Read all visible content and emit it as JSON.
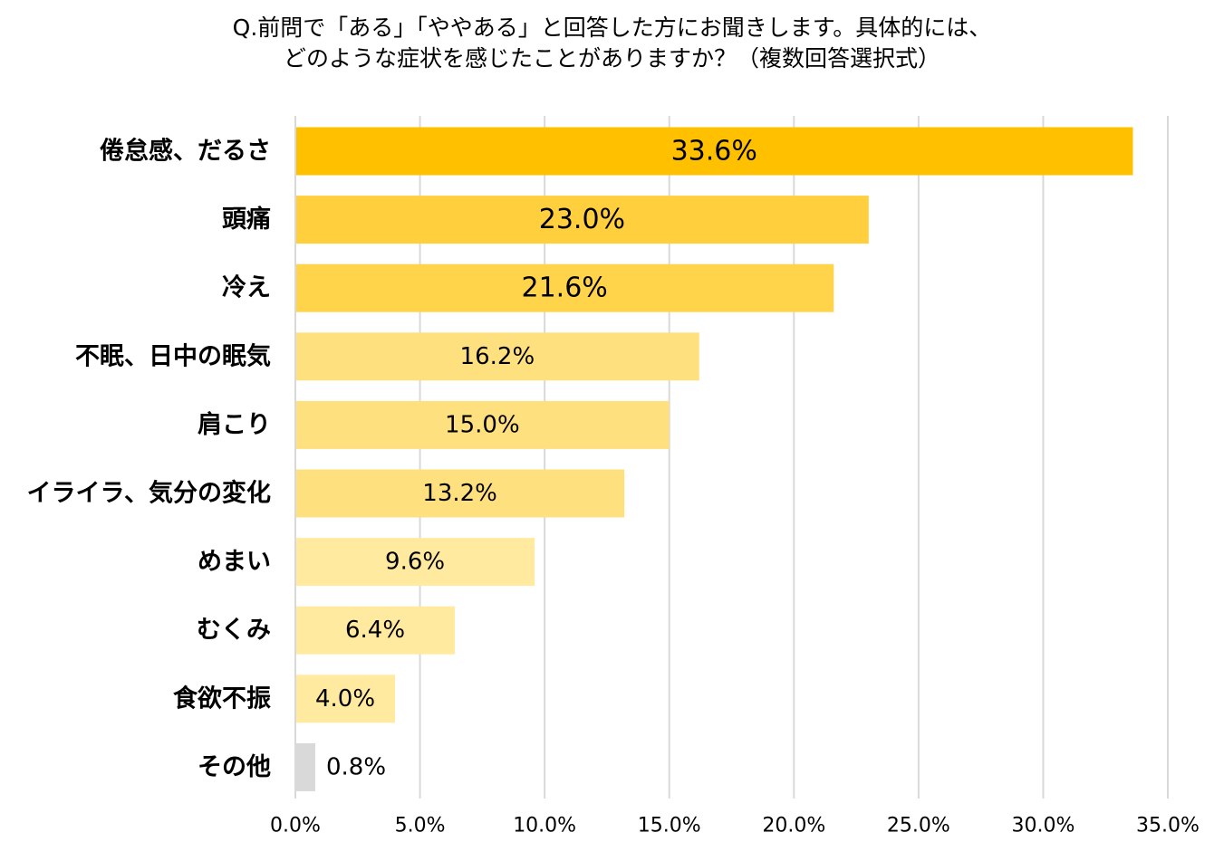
{
  "title": {
    "line1": "Q.前問で「ある」「ややある」と回答した方にお聞きします。具体的には、",
    "line2": "どのような症状を感じたことがありますか？（複数回答選択式）"
  },
  "chart_data": {
    "type": "bar",
    "orientation": "horizontal",
    "title": "Q.前問で「ある」「ややある」と回答した方にお聞きします。具体的には、どのような症状を感じたことがありますか？（複数回答選択式）",
    "categories": [
      "倦怠感、だるさ",
      "頭痛",
      "冷え",
      "不眠、日中の眠気",
      "肩こり",
      "イライラ、気分の変化",
      "めまい",
      "むくみ",
      "食欲不振",
      "その他"
    ],
    "values": [
      33.6,
      23.0,
      21.6,
      16.2,
      15.0,
      13.2,
      9.6,
      6.4,
      4.0,
      0.8
    ],
    "value_labels": [
      "33.6%",
      "23.0%",
      "21.6%",
      "16.2%",
      "15.0%",
      "13.2%",
      "9.6%",
      "6.4%",
      "4.0%",
      "0.8%"
    ],
    "colors": [
      "#FFC000",
      "#FFCF3D",
      "#FFD44A",
      "#FFE07F",
      "#FFE07F",
      "#FFE07F",
      "#FFEA9F",
      "#FFEA9F",
      "#FFEA9F",
      "#D9D9D9"
    ],
    "xlim": [
      0,
      35
    ],
    "xticks": [
      0,
      5,
      10,
      15,
      20,
      25,
      30,
      35
    ],
    "xtick_labels": [
      "0.0%",
      "5.0%",
      "10.0%",
      "15.0%",
      "20.0%",
      "25.0%",
      "30.0%",
      "35.0%"
    ],
    "grid": true,
    "gridline_color": "#D9D9D9",
    "xlabel": "",
    "ylabel": ""
  }
}
